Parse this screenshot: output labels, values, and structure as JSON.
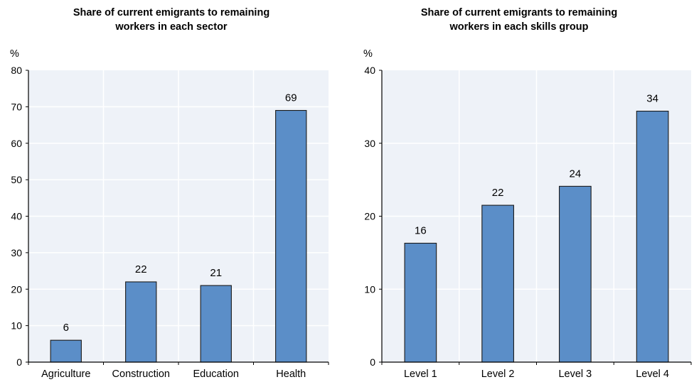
{
  "chart_data": [
    {
      "type": "bar",
      "title_lines": [
        "Share of current emigrants to remaining",
        "workers in each sector"
      ],
      "ylabel": "%",
      "xlabel": "",
      "categories": [
        "Agriculture",
        "Construction",
        "Education",
        "Health"
      ],
      "values": [
        6,
        22,
        21,
        69
      ],
      "labels": [
        "6",
        "22",
        "21",
        "69"
      ],
      "ylim": [
        0,
        80
      ],
      "yticks": [
        0,
        10,
        20,
        30,
        40,
        50,
        60,
        70,
        80
      ],
      "grid": true,
      "legend": "none",
      "colors": {
        "bar": "#5b8ec8",
        "bar_border": "#1a1a1a",
        "plot_bg": "#eef2f8",
        "grid": "#ffffff"
      }
    },
    {
      "type": "bar",
      "title_lines": [
        "Share of current emigrants to remaining",
        "workers in each skills group"
      ],
      "ylabel": "%",
      "xlabel": "",
      "categories": [
        "Level 1",
        "Level 2",
        "Level 3",
        "Level 4"
      ],
      "values": [
        16.3,
        21.5,
        24.1,
        34.4
      ],
      "labels": [
        "16",
        "22",
        "24",
        "34"
      ],
      "ylim": [
        0,
        40
      ],
      "yticks": [
        0,
        10,
        20,
        30,
        40
      ],
      "grid": true,
      "legend": "none",
      "colors": {
        "bar": "#5b8ec8",
        "bar_border": "#1a1a1a",
        "plot_bg": "#eef2f8",
        "grid": "#ffffff"
      }
    }
  ]
}
